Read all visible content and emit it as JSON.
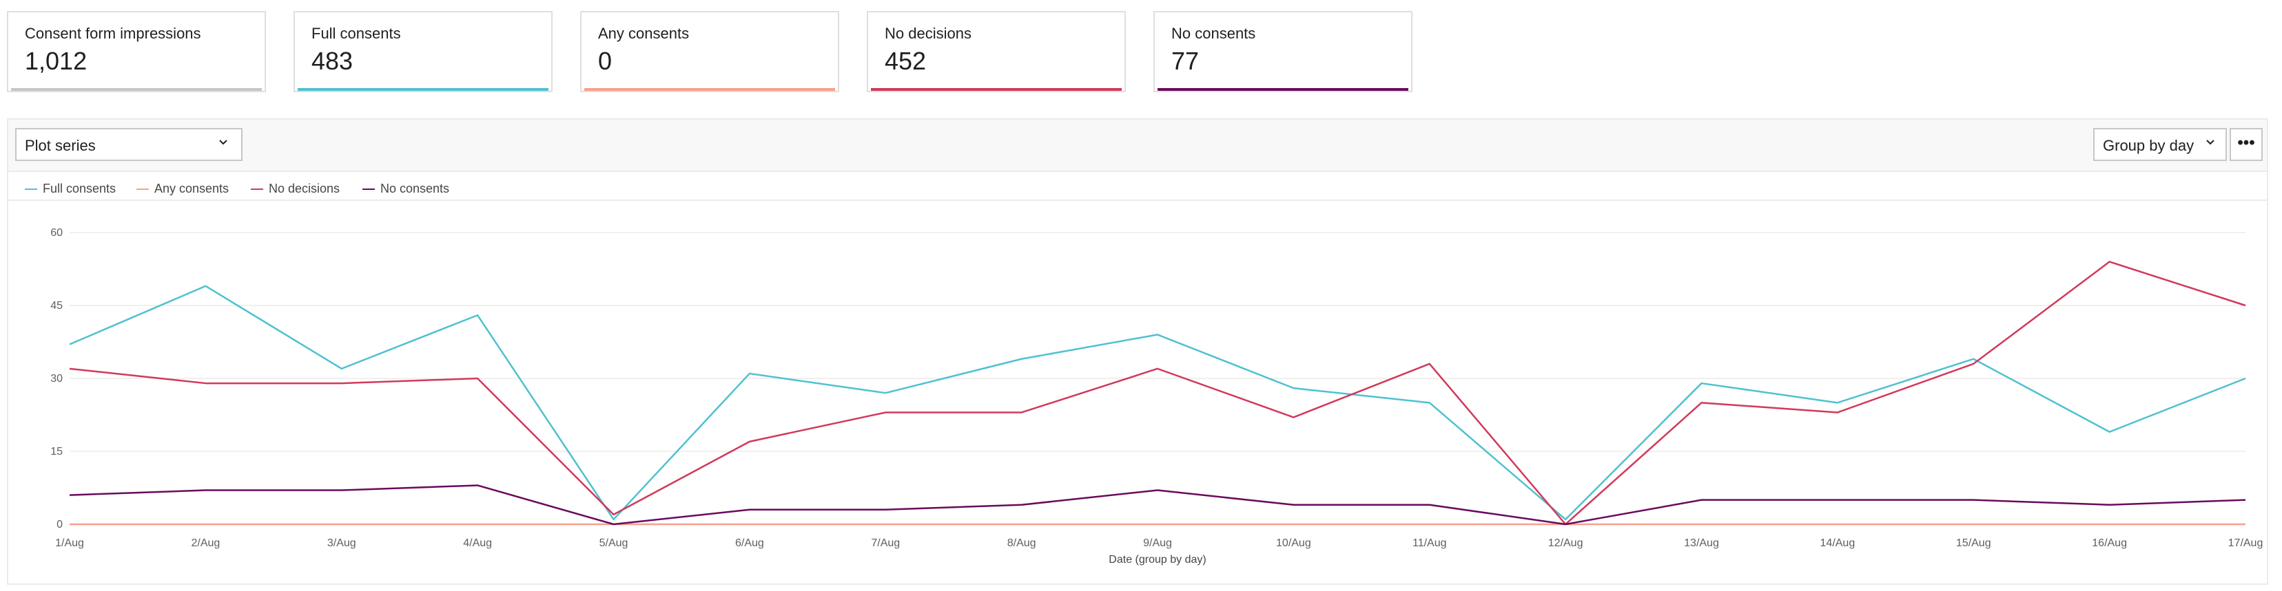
{
  "cards": [
    {
      "title": "Consent form impressions",
      "value": "1,012",
      "color": "#c8c6c4"
    },
    {
      "title": "Full consents",
      "value": "483",
      "color": "#4ec1d1"
    },
    {
      "title": "Any consents",
      "value": "0",
      "color": "#f7a08b"
    },
    {
      "title": "No decisions",
      "value": "452",
      "color": "#d1395a"
    },
    {
      "title": "No consents",
      "value": "77",
      "color": "#6a0a5c"
    }
  ],
  "toolbar": {
    "plot_series_label": "Plot series",
    "group_by_label": "Group by day",
    "more_label": "•••"
  },
  "chart_data": {
    "type": "line",
    "title": "",
    "xlabel": "Date (group by day)",
    "ylabel": "",
    "ylim": [
      0,
      60
    ],
    "yticks": [
      0,
      15,
      30,
      45,
      60
    ],
    "grid": true,
    "legend_position": "top-left",
    "categories": [
      "1/Aug",
      "2/Aug",
      "3/Aug",
      "4/Aug",
      "5/Aug",
      "6/Aug",
      "7/Aug",
      "8/Aug",
      "9/Aug",
      "10/Aug",
      "11/Aug",
      "12/Aug",
      "13/Aug",
      "14/Aug",
      "15/Aug",
      "16/Aug",
      "17/Aug"
    ],
    "series": [
      {
        "name": "Full consents",
        "color": "#4ec1d1",
        "values": [
          37,
          49,
          32,
          43,
          1,
          31,
          27,
          34,
          39,
          28,
          25,
          1,
          29,
          25,
          34,
          19,
          30
        ]
      },
      {
        "name": "Any consents",
        "color": "#f7a08b",
        "values": [
          0,
          0,
          0,
          0,
          0,
          0,
          0,
          0,
          0,
          0,
          0,
          0,
          0,
          0,
          0,
          0,
          0
        ]
      },
      {
        "name": "No decisions",
        "color": "#d1395a",
        "values": [
          32,
          29,
          29,
          30,
          2,
          17,
          23,
          23,
          32,
          22,
          33,
          0,
          25,
          23,
          33,
          54,
          45
        ]
      },
      {
        "name": "No consents",
        "color": "#6a0a5c",
        "values": [
          6,
          7,
          7,
          8,
          0,
          3,
          3,
          4,
          7,
          4,
          4,
          0,
          5,
          5,
          5,
          4,
          5
        ]
      }
    ]
  }
}
